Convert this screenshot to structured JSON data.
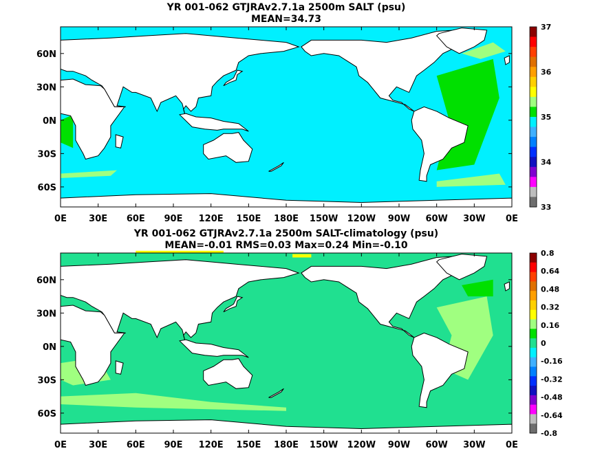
{
  "maps": [
    {
      "title": "YR 001-062 GTJRAv2.7.1a 2500m SALT (psu)",
      "subtitle": "MEAN=34.73",
      "ocean_color": "#00f0ff",
      "lat_labels": [
        "60N",
        "30N",
        "0N",
        "30S",
        "60S"
      ],
      "lon_labels": [
        "0E",
        "30E",
        "60E",
        "90E",
        "120E",
        "150E",
        "180E",
        "150W",
        "120W",
        "90W",
        "60W",
        "30W",
        "0E"
      ],
      "colorbar": {
        "labels": [
          "37",
          "36",
          "35",
          "34",
          "33"
        ],
        "colors": [
          "#8b0000",
          "#ff0000",
          "#ff4000",
          "#e07000",
          "#ff9f00",
          "#ffd000",
          "#ffff00",
          "#a0ff80",
          "#00e000",
          "#00f0ff",
          "#40b0ff",
          "#0080ff",
          "#0030ff",
          "#1010c0",
          "#8000d0",
          "#ff00ff",
          "#bdbdbd",
          "#6e6e6e"
        ]
      }
    },
    {
      "title": "YR 001-062 GTJRAv2.7.1a 2500m SALT-climatology (psu)",
      "subtitle": "MEAN=-0.01   RMS=0.03   Max=0.24   Min=-0.10",
      "ocean_color": "#20e090",
      "lat_labels": [
        "60N",
        "30N",
        "0N",
        "30S",
        "60S"
      ],
      "lon_labels": [
        "0E",
        "30E",
        "60E",
        "90E",
        "120E",
        "150E",
        "180E",
        "150W",
        "120W",
        "90W",
        "60W",
        "30W",
        "0E"
      ],
      "colorbar": {
        "labels": [
          "0.8",
          "0.64",
          "0.48",
          "0.32",
          "0.16",
          "0",
          "-0.16",
          "-0.32",
          "-0.48",
          "-0.64",
          "-0.8"
        ],
        "colors": [
          "#8b0000",
          "#ff0000",
          "#ff4000",
          "#e07000",
          "#ff9f00",
          "#ffd000",
          "#ffff00",
          "#a0ff80",
          "#00e000",
          "#20e090",
          "#00f0ff",
          "#40b0ff",
          "#0080ff",
          "#0030ff",
          "#1010c0",
          "#8000d0",
          "#ff00ff",
          "#bdbdbd",
          "#6e6e6e"
        ]
      }
    }
  ]
}
